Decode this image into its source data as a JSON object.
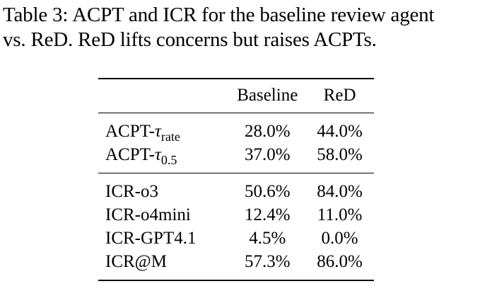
{
  "caption": {
    "label": "Table 3:",
    "line1": "ACPT and ICR for the baseline review agent",
    "line2": "vs. ReD. ReD lifts concerns but raises ACPTs."
  },
  "table": {
    "columns": [
      "",
      "Baseline",
      "ReD"
    ],
    "group1": [
      {
        "prefix": "ACPT-",
        "tau": "τ",
        "sub": "rate",
        "baseline": "28.0%",
        "red": "44.0%"
      },
      {
        "prefix": "ACPT-",
        "tau": "τ",
        "sub": "0.5",
        "baseline": "37.0%",
        "red": "58.0%"
      }
    ],
    "group2": [
      {
        "label": "ICR-o3",
        "baseline": "50.6%",
        "red": "84.0%"
      },
      {
        "label": "ICR-o4mini",
        "baseline": "12.4%",
        "red": "11.0%"
      },
      {
        "label": "ICR-GPT4.1",
        "baseline": "4.5%",
        "red": "0.0%"
      },
      {
        "label": "ICR@M",
        "baseline": "57.3%",
        "red": "86.0%"
      }
    ]
  }
}
